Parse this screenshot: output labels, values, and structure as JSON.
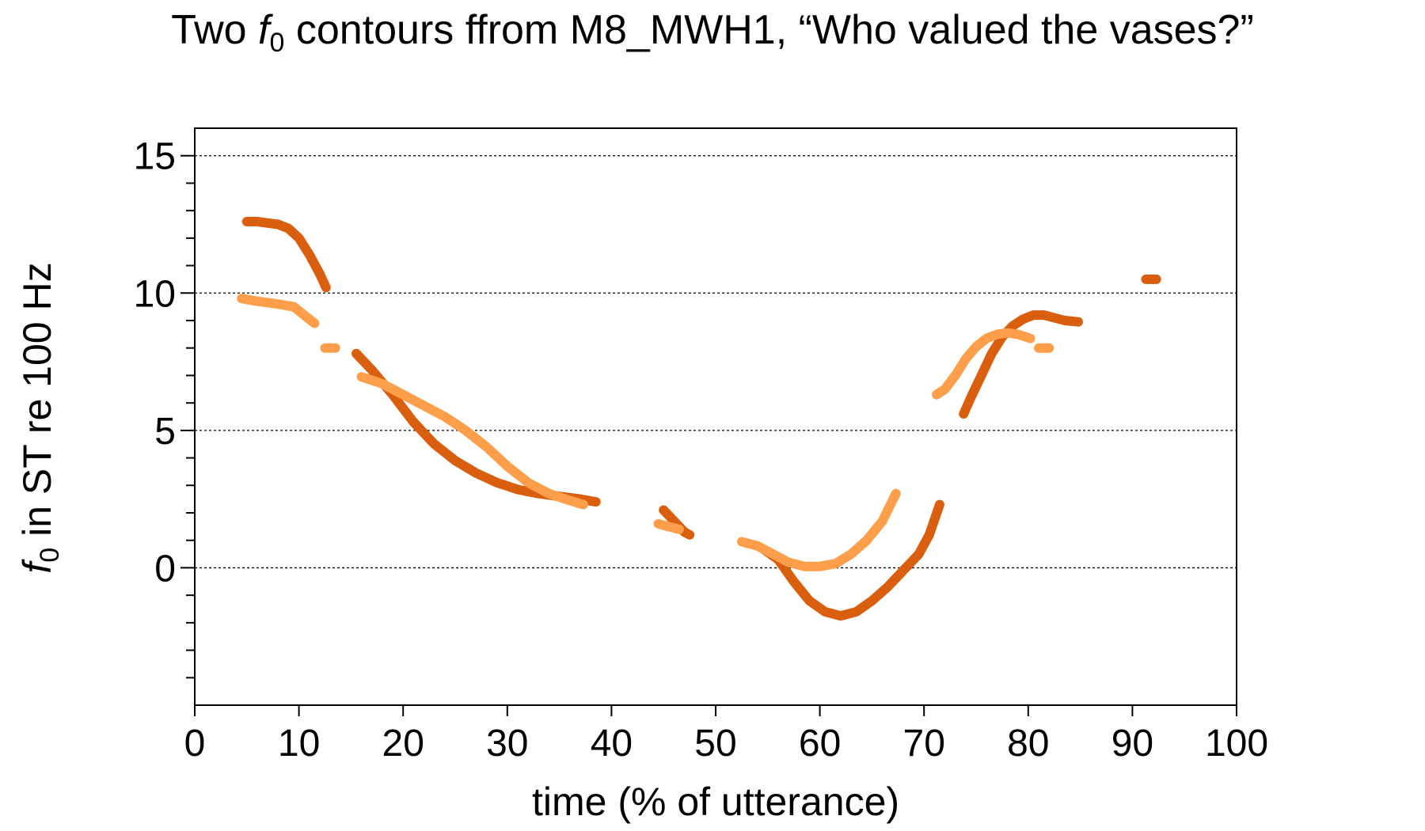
{
  "chart_data": {
    "type": "line",
    "title": {
      "prefix": "Two ",
      "symbol": "f",
      "subscript": "0",
      "suffix": " contours ffrom M8_MWH1, “Who valued the vases?”"
    },
    "xlabel": "time (% of utterance)",
    "ylabel": {
      "symbol": "f",
      "subscript": "0",
      "suffix": " in ST re 100 Hz"
    },
    "xlim": [
      0,
      100
    ],
    "ylim": [
      -5,
      16
    ],
    "xticks": [
      0,
      10,
      20,
      30,
      40,
      50,
      60,
      70,
      80,
      90,
      100
    ],
    "yticks": [
      0,
      5,
      10,
      15
    ],
    "yminor_step": 1,
    "grid": {
      "y": [
        0,
        5,
        10,
        15
      ],
      "style": "dotted"
    },
    "legend": "none",
    "series": [
      {
        "color": "#d95f0e",
        "segments": [
          [
            [
              5.0,
              12.6
            ],
            [
              6.0,
              12.6
            ],
            [
              7.0,
              12.55
            ],
            [
              8.0,
              12.5
            ],
            [
              9.0,
              12.35
            ],
            [
              10.0,
              12.0
            ],
            [
              11.0,
              11.4
            ],
            [
              12.0,
              10.7
            ],
            [
              12.6,
              10.2
            ]
          ],
          [
            [
              15.5,
              7.8
            ],
            [
              17.0,
              7.2
            ],
            [
              19.0,
              6.3
            ],
            [
              21.0,
              5.3
            ],
            [
              23.0,
              4.5
            ],
            [
              25.0,
              3.9
            ],
            [
              27.0,
              3.45
            ],
            [
              29.0,
              3.1
            ],
            [
              31.0,
              2.85
            ],
            [
              33.0,
              2.7
            ],
            [
              35.0,
              2.6
            ],
            [
              37.0,
              2.5
            ],
            [
              38.5,
              2.4
            ]
          ],
          [
            [
              45.0,
              2.1
            ],
            [
              46.0,
              1.7
            ],
            [
              47.0,
              1.3
            ],
            [
              47.5,
              1.2
            ]
          ],
          [
            [
              54.5,
              0.7
            ],
            [
              56.0,
              0.3
            ],
            [
              57.5,
              -0.5
            ],
            [
              59.0,
              -1.2
            ],
            [
              60.5,
              -1.6
            ],
            [
              62.0,
              -1.75
            ],
            [
              63.5,
              -1.6
            ],
            [
              65.0,
              -1.2
            ],
            [
              66.5,
              -0.7
            ],
            [
              68.0,
              -0.1
            ],
            [
              69.5,
              0.5
            ],
            [
              70.5,
              1.2
            ],
            [
              71.5,
              2.3
            ]
          ],
          [
            [
              73.8,
              5.6
            ],
            [
              74.5,
              6.2
            ],
            [
              75.5,
              7.0
            ],
            [
              76.5,
              7.8
            ],
            [
              77.5,
              8.4
            ],
            [
              78.5,
              8.8
            ],
            [
              79.5,
              9.05
            ],
            [
              80.5,
              9.2
            ],
            [
              81.5,
              9.2
            ],
            [
              82.5,
              9.1
            ],
            [
              83.5,
              9.0
            ],
            [
              84.8,
              8.95
            ]
          ],
          [
            [
              91.3,
              10.5
            ],
            [
              92.3,
              10.5
            ]
          ]
        ]
      },
      {
        "color": "#fd9f4a",
        "segments": [
          [
            [
              4.5,
              9.8
            ],
            [
              6.0,
              9.7
            ],
            [
              8.0,
              9.6
            ],
            [
              9.5,
              9.5
            ],
            [
              10.5,
              9.2
            ],
            [
              11.5,
              8.9
            ]
          ],
          [
            [
              12.5,
              8.0
            ],
            [
              13.5,
              8.0
            ]
          ],
          [
            [
              16.0,
              6.95
            ],
            [
              18.0,
              6.7
            ],
            [
              20.0,
              6.3
            ],
            [
              22.0,
              5.9
            ],
            [
              24.0,
              5.5
            ],
            [
              26.0,
              5.0
            ],
            [
              28.0,
              4.4
            ],
            [
              30.0,
              3.7
            ],
            [
              32.0,
              3.1
            ],
            [
              34.0,
              2.7
            ],
            [
              36.0,
              2.45
            ],
            [
              37.3,
              2.3
            ]
          ],
          [
            [
              44.5,
              1.6
            ],
            [
              45.5,
              1.5
            ],
            [
              46.5,
              1.4
            ]
          ],
          [
            [
              52.5,
              0.95
            ],
            [
              54.0,
              0.8
            ],
            [
              55.5,
              0.5
            ],
            [
              57.0,
              0.2
            ],
            [
              58.5,
              0.05
            ],
            [
              60.0,
              0.05
            ],
            [
              61.5,
              0.15
            ],
            [
              63.0,
              0.5
            ],
            [
              64.5,
              1.0
            ],
            [
              66.0,
              1.7
            ],
            [
              67.3,
              2.7
            ]
          ],
          [
            [
              71.2,
              6.3
            ],
            [
              72.0,
              6.5
            ],
            [
              73.0,
              7.0
            ],
            [
              74.0,
              7.6
            ],
            [
              75.0,
              8.05
            ],
            [
              76.0,
              8.35
            ],
            [
              77.0,
              8.5
            ],
            [
              78.0,
              8.55
            ],
            [
              79.0,
              8.5
            ],
            [
              80.2,
              8.35
            ]
          ],
          [
            [
              81.0,
              8.0
            ],
            [
              82.0,
              8.0
            ]
          ]
        ]
      }
    ]
  }
}
